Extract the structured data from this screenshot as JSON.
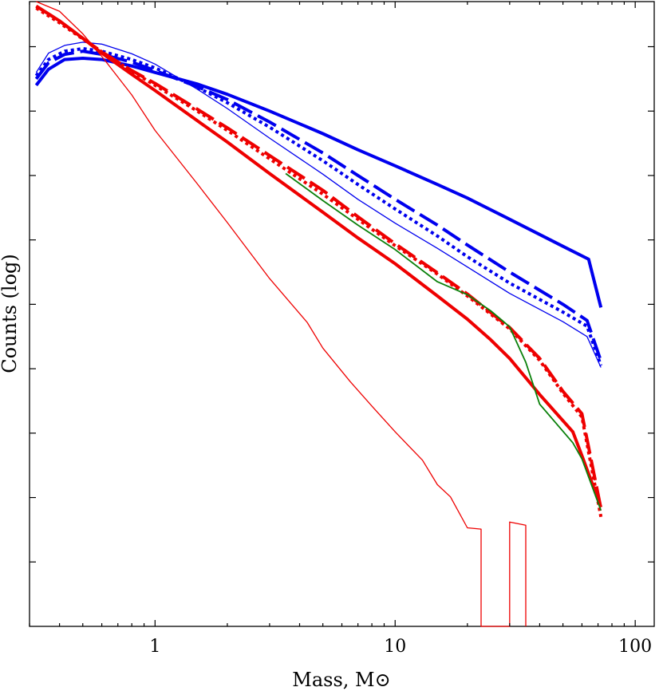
{
  "chart_data": {
    "type": "line",
    "xlabel": "Mass, M⊙",
    "ylabel": "Counts (log)",
    "x_scale": "log",
    "xlim": [
      0.3,
      120
    ],
    "ylim": [
      0,
      97
    ],
    "x_ticks": [
      {
        "value": 1,
        "label": "1"
      },
      {
        "value": 10,
        "label": "10"
      },
      {
        "value": 100,
        "label": "100"
      }
    ],
    "y_ticks": [
      10,
      20,
      30,
      40,
      50,
      60,
      70,
      80,
      90
    ],
    "grid": false,
    "series": [
      {
        "color": "#0000ee",
        "style": "solid",
        "width": 4,
        "points": [
          [
            0.32,
            84
          ],
          [
            0.36,
            86.5
          ],
          [
            0.42,
            88
          ],
          [
            0.5,
            88.2
          ],
          [
            0.6,
            88
          ],
          [
            0.8,
            87
          ],
          [
            1,
            86
          ],
          [
            1.5,
            84.2
          ],
          [
            2,
            82.6
          ],
          [
            3,
            80
          ],
          [
            5,
            76.5
          ],
          [
            7,
            74
          ],
          [
            10,
            71.5
          ],
          [
            15,
            68.6
          ],
          [
            20,
            66.5
          ],
          [
            30,
            63.2
          ],
          [
            50,
            59
          ],
          [
            64,
            57
          ],
          [
            72,
            49.5
          ]
        ]
      },
      {
        "color": "#0000ee",
        "style": "dashed",
        "width": 4,
        "points": [
          [
            0.32,
            85
          ],
          [
            0.36,
            87.5
          ],
          [
            0.42,
            88.8
          ],
          [
            0.5,
            89.3
          ],
          [
            0.6,
            88.8
          ],
          [
            0.8,
            87.6
          ],
          [
            1,
            86.3
          ],
          [
            1.5,
            83.8
          ],
          [
            2,
            81.8
          ],
          [
            3,
            78.3
          ],
          [
            5,
            73.5
          ],
          [
            7,
            70
          ],
          [
            10,
            66.3
          ],
          [
            15,
            62.3
          ],
          [
            20,
            59.2
          ],
          [
            30,
            55
          ],
          [
            50,
            50
          ],
          [
            63,
            47.5
          ],
          [
            72,
            41.2
          ]
        ]
      },
      {
        "color": "#0000ee",
        "style": "dotted",
        "width": 4,
        "points": [
          [
            0.32,
            85.5
          ],
          [
            0.36,
            88
          ],
          [
            0.42,
            89.3
          ],
          [
            0.5,
            89.7
          ],
          [
            0.6,
            89.3
          ],
          [
            0.8,
            88
          ],
          [
            1,
            86.7
          ],
          [
            1.5,
            83.7
          ],
          [
            2,
            81.3
          ],
          [
            3,
            77.5
          ],
          [
            5,
            72.3
          ],
          [
            7,
            68.6
          ],
          [
            10,
            64.8
          ],
          [
            15,
            60.6
          ],
          [
            20,
            57.4
          ],
          [
            30,
            53.3
          ],
          [
            50,
            48.8
          ],
          [
            63,
            46.6
          ],
          [
            72,
            40.5
          ]
        ]
      },
      {
        "color": "#0000ee",
        "style": "solid",
        "width": 1.3,
        "points": [
          [
            0.32,
            86
          ],
          [
            0.36,
            89
          ],
          [
            0.42,
            90.2
          ],
          [
            0.5,
            90.7
          ],
          [
            0.6,
            90.4
          ],
          [
            0.8,
            88.9
          ],
          [
            1,
            87.3
          ],
          [
            1.5,
            83.4
          ],
          [
            2,
            80.4
          ],
          [
            3,
            75.8
          ],
          [
            5,
            70.2
          ],
          [
            7,
            66.3
          ],
          [
            10,
            62.6
          ],
          [
            15,
            58.7
          ],
          [
            20,
            55.8
          ],
          [
            30,
            51.7
          ],
          [
            50,
            47.3
          ],
          [
            63,
            45
          ],
          [
            72,
            40.2
          ]
        ]
      },
      {
        "color": "#ee0000",
        "style": "solid",
        "width": 4,
        "points": [
          [
            0.32,
            96.3
          ],
          [
            0.4,
            94
          ],
          [
            0.5,
            91.3
          ],
          [
            0.6,
            89
          ],
          [
            0.8,
            85.7
          ],
          [
            1,
            83.2
          ],
          [
            1.5,
            78.5
          ],
          [
            2,
            75.2
          ],
          [
            3,
            70.3
          ],
          [
            5,
            64.3
          ],
          [
            7,
            60.3
          ],
          [
            10,
            56.3
          ],
          [
            15,
            51.3
          ],
          [
            20,
            47.7
          ],
          [
            25,
            44.5
          ],
          [
            30,
            41.6
          ],
          [
            40,
            36
          ],
          [
            55,
            30.2
          ],
          [
            60,
            26.5
          ],
          [
            72,
            18.5
          ]
        ]
      },
      {
        "color": "#ee0000",
        "style": "dashed",
        "width": 4,
        "points": [
          [
            0.32,
            96.3
          ],
          [
            0.4,
            94
          ],
          [
            0.5,
            91.3
          ],
          [
            0.6,
            89.2
          ],
          [
            0.8,
            86.3
          ],
          [
            1,
            84.3
          ],
          [
            1.5,
            80.3
          ],
          [
            2,
            77.4
          ],
          [
            3,
            73.1
          ],
          [
            5,
            67.7
          ],
          [
            7,
            63.6
          ],
          [
            10,
            59.4
          ],
          [
            15,
            54.9
          ],
          [
            20,
            51.6
          ],
          [
            30,
            46.4
          ],
          [
            40,
            41.6
          ],
          [
            50,
            36.5
          ],
          [
            60,
            33
          ],
          [
            72,
            18.3
          ]
        ]
      },
      {
        "color": "#ee0000",
        "style": "dotted",
        "width": 4,
        "points": [
          [
            0.32,
            96
          ],
          [
            0.4,
            93.7
          ],
          [
            0.5,
            91.2
          ],
          [
            0.6,
            89.2
          ],
          [
            0.8,
            86.2
          ],
          [
            1,
            84
          ],
          [
            1.5,
            80
          ],
          [
            2,
            77
          ],
          [
            3,
            72.6
          ],
          [
            5,
            67.1
          ],
          [
            7,
            63.2
          ],
          [
            10,
            59.1
          ],
          [
            15,
            54.7
          ],
          [
            20,
            51.3
          ],
          [
            30,
            46.2
          ],
          [
            40,
            41.3
          ],
          [
            50,
            36.2
          ],
          [
            60,
            32.5
          ],
          [
            72,
            17
          ]
        ]
      },
      {
        "color": "#0a800a",
        "style": "solid",
        "width": 1.8,
        "points": [
          [
            3.5,
            70.3
          ],
          [
            5,
            66.1
          ],
          [
            7,
            62.3
          ],
          [
            10,
            58.5
          ],
          [
            15,
            53.5
          ],
          [
            20,
            51.5
          ],
          [
            25,
            49
          ],
          [
            30,
            46.5
          ],
          [
            35,
            41
          ],
          [
            40,
            34.5
          ],
          [
            55,
            28.5
          ],
          [
            60,
            26
          ],
          [
            72,
            18
          ]
        ]
      },
      {
        "color": "#ee0000",
        "style": "solid",
        "width": 1.3,
        "points": [
          [
            0.32,
            97
          ],
          [
            0.4,
            95.5
          ],
          [
            0.5,
            92
          ],
          [
            0.6,
            88.5
          ],
          [
            0.8,
            82.5
          ],
          [
            1,
            77
          ],
          [
            1.5,
            68.7
          ],
          [
            2,
            62.7
          ],
          [
            3,
            54
          ],
          [
            4.3,
            47.2
          ],
          [
            5,
            43.2
          ],
          [
            6.5,
            38
          ],
          [
            8,
            34.2
          ],
          [
            10,
            30.2
          ],
          [
            13,
            25.8
          ],
          [
            15,
            22
          ],
          [
            17,
            20.1
          ],
          [
            20,
            15.3
          ],
          [
            22.8,
            15.1
          ],
          [
            22.8,
            0
          ],
          [
            30,
            0
          ],
          [
            30,
            16.2
          ],
          [
            35,
            15.7
          ],
          [
            35,
            0
          ]
        ]
      }
    ]
  }
}
